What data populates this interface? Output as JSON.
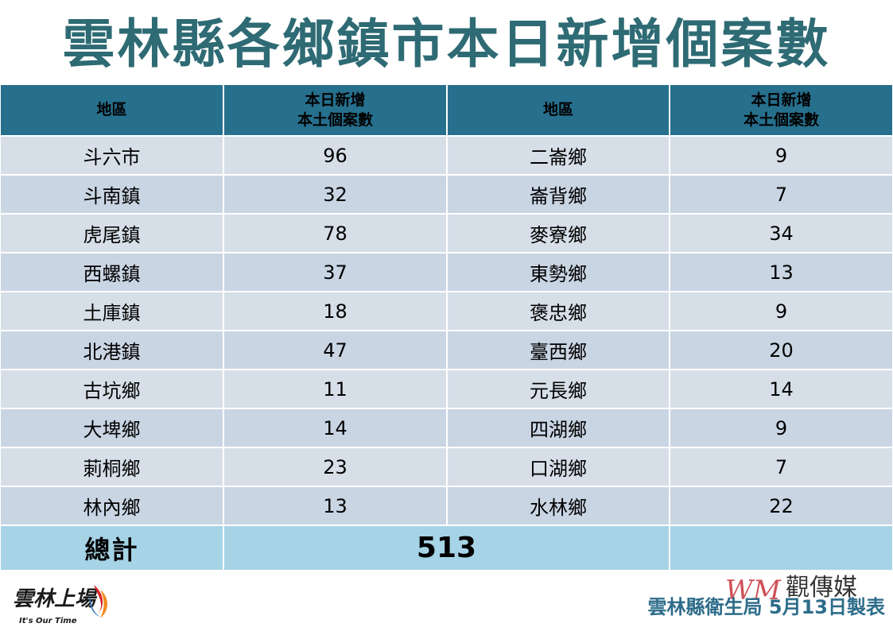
{
  "title": "雲林縣各鄉鎮市本日新增個案數",
  "table": {
    "headers": [
      {
        "line1": "地區",
        "line2": ""
      },
      {
        "line1": "本日新增",
        "line2": "本土個案數"
      },
      {
        "line1": "地區",
        "line2": ""
      },
      {
        "line1": "本日新增",
        "line2": "本土個案數"
      }
    ],
    "rows": [
      {
        "area_left": "斗六市",
        "count_left": "96",
        "area_right": "二崙鄉",
        "count_right": "9"
      },
      {
        "area_left": "斗南鎮",
        "count_left": "32",
        "area_right": "崙背鄉",
        "count_right": "7"
      },
      {
        "area_left": "虎尾鎮",
        "count_left": "78",
        "area_right": "麥寮鄉",
        "count_right": "34"
      },
      {
        "area_left": "西螺鎮",
        "count_left": "37",
        "area_right": "東勢鄉",
        "count_right": "13"
      },
      {
        "area_left": "土庫鎮",
        "count_left": "18",
        "area_right": "褒忠鄉",
        "count_right": "9"
      },
      {
        "area_left": "北港鎮",
        "count_left": "47",
        "area_right": "臺西鄉",
        "count_right": "20"
      },
      {
        "area_left": "古坑鄉",
        "count_left": "11",
        "area_right": "元長鄉",
        "count_right": "14"
      },
      {
        "area_left": "大埤鄉",
        "count_left": "14",
        "area_right": "四湖鄉",
        "count_right": "9"
      },
      {
        "area_left": "莿桐鄉",
        "count_left": "23",
        "area_right": "口湖鄉",
        "count_right": "7"
      },
      {
        "area_left": "林內鄉",
        "count_left": "13",
        "area_right": "水林鄉",
        "count_right": "22"
      }
    ],
    "total_label": "總計",
    "total_value": "513"
  },
  "logo_left": {
    "text": "雲林上場",
    "tagline": "It's Our Time"
  },
  "watermark": {
    "brand": "觀傳媒",
    "letters": "WM"
  },
  "footer": "雲林縣衛生局  5月13日製表",
  "colors": {
    "title": "#2e6b74",
    "header_bg": "#266f8d",
    "row_light": "#d6dfe8",
    "row_dark": "#c9d5e3",
    "total_bg": "#a6d3e6",
    "total_text": "#276f8d",
    "footer_text": "#2d6c8a"
  }
}
